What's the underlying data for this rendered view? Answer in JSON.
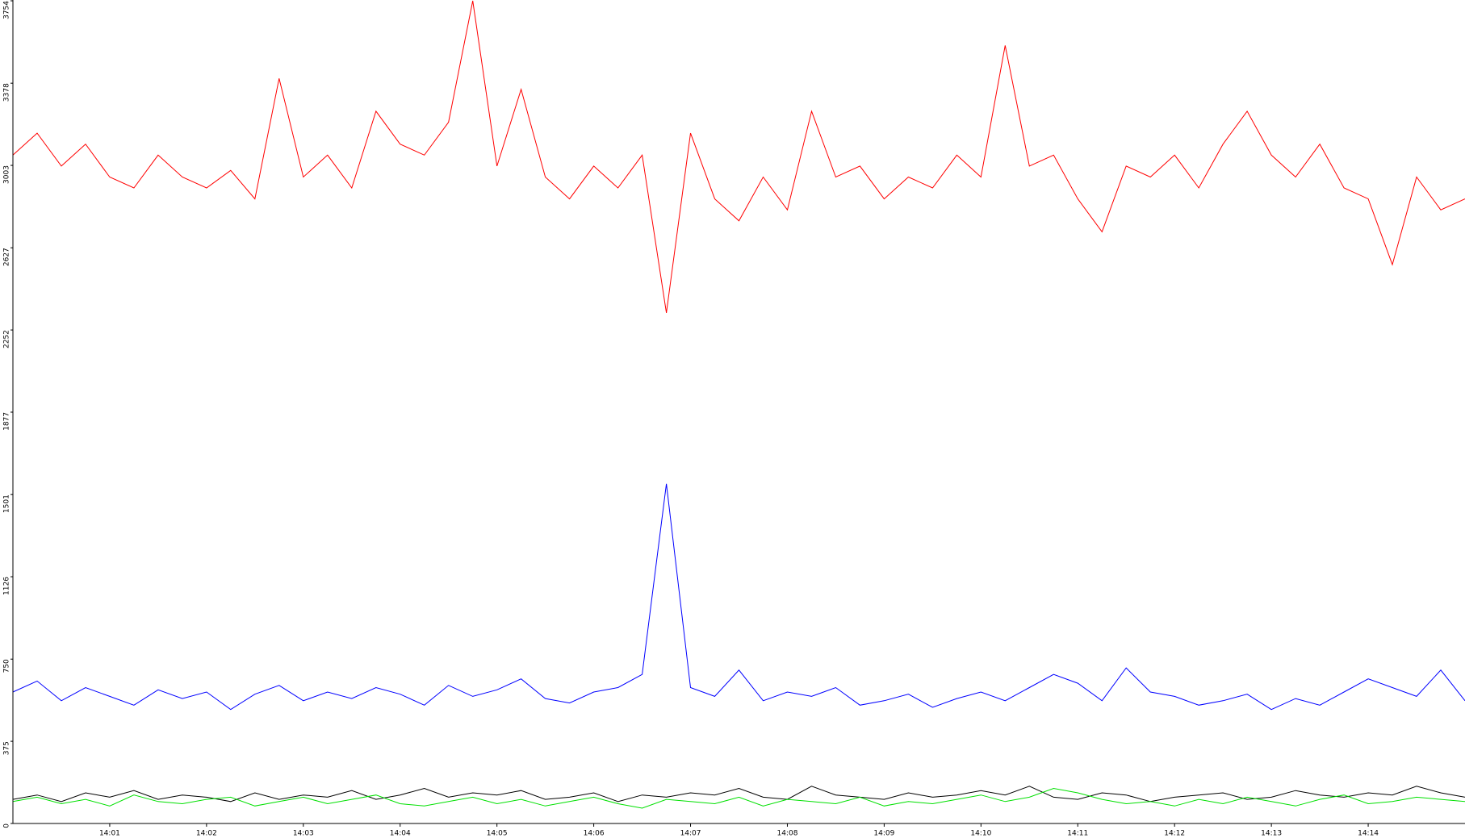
{
  "chart_data": {
    "type": "line",
    "x": [
      0,
      0.25,
      0.5,
      0.75,
      1,
      1.25,
      1.5,
      1.75,
      2,
      2.25,
      2.5,
      2.75,
      3,
      3.25,
      3.5,
      3.75,
      4,
      4.25,
      4.5,
      4.75,
      5,
      5.25,
      5.5,
      5.75,
      6,
      6.25,
      6.5,
      6.75,
      7,
      7.25,
      7.5,
      7.75,
      8,
      8.25,
      8.5,
      8.75,
      9,
      9.25,
      9.5,
      9.75,
      10,
      10.25,
      10.5,
      10.75,
      11,
      11.25,
      11.5,
      11.75,
      12,
      12.25,
      12.5,
      12.75,
      13,
      13.25,
      13.5,
      13.75,
      14,
      14.25,
      14.5,
      14.75,
      15
    ],
    "xlim": [
      0,
      15
    ],
    "xticks": [
      {
        "value": 1,
        "label": "14:01"
      },
      {
        "value": 2,
        "label": "14:02"
      },
      {
        "value": 3,
        "label": "14:03"
      },
      {
        "value": 4,
        "label": "14:04"
      },
      {
        "value": 5,
        "label": "14:05"
      },
      {
        "value": 6,
        "label": "14:06"
      },
      {
        "value": 7,
        "label": "14:07"
      },
      {
        "value": 8,
        "label": "14:08"
      },
      {
        "value": 9,
        "label": "14:09"
      },
      {
        "value": 10,
        "label": "14:10"
      },
      {
        "value": 11,
        "label": "14:11"
      },
      {
        "value": 12,
        "label": "14:12"
      },
      {
        "value": 13,
        "label": "14:13"
      },
      {
        "value": 14,
        "label": "14:14"
      }
    ],
    "ylim": [
      0,
      3754
    ],
    "yticks": [
      0,
      375,
      750,
      1126,
      1501,
      1877,
      2252,
      2627,
      3003,
      3378,
      3754
    ],
    "series": [
      {
        "color": "#ff0000",
        "values": [
          3050,
          3150,
          3000,
          3100,
          2950,
          2900,
          3050,
          2950,
          2900,
          2980,
          2850,
          3400,
          2950,
          3050,
          2900,
          3250,
          3100,
          3050,
          3200,
          3754,
          3000,
          3350,
          2950,
          2850,
          3000,
          2900,
          3050,
          2330,
          3150,
          2850,
          2750,
          2950,
          2800,
          3250,
          2950,
          3000,
          2850,
          2950,
          2900,
          3050,
          2950,
          3550,
          3000,
          3050,
          2850,
          2700,
          3000,
          2950,
          3050,
          2900,
          3100,
          3250,
          3050,
          2950,
          3100,
          2900,
          2850,
          2550,
          2950,
          2800,
          2850
        ]
      },
      {
        "color": "#0000ff",
        "values": [
          600,
          650,
          560,
          620,
          580,
          540,
          610,
          570,
          600,
          520,
          590,
          630,
          560,
          600,
          570,
          620,
          590,
          540,
          630,
          580,
          610,
          660,
          570,
          550,
          600,
          620,
          680,
          1550,
          620,
          580,
          700,
          560,
          600,
          580,
          620,
          540,
          560,
          590,
          530,
          570,
          600,
          560,
          620,
          680,
          640,
          560,
          710,
          600,
          580,
          540,
          560,
          590,
          520,
          570,
          540,
          600,
          660,
          620,
          580,
          700,
          560
        ]
      },
      {
        "color": "#000000",
        "values": [
          110,
          130,
          100,
          140,
          120,
          150,
          110,
          130,
          120,
          100,
          140,
          110,
          130,
          120,
          150,
          110,
          130,
          160,
          120,
          140,
          130,
          150,
          110,
          120,
          140,
          100,
          130,
          120,
          140,
          130,
          160,
          120,
          110,
          170,
          130,
          120,
          110,
          140,
          120,
          130,
          150,
          130,
          170,
          120,
          110,
          140,
          130,
          100,
          120,
          130,
          140,
          110,
          120,
          150,
          130,
          120,
          140,
          130,
          170,
          140,
          120
        ]
      },
      {
        "color": "#00e000",
        "values": [
          100,
          120,
          90,
          110,
          80,
          130,
          100,
          90,
          110,
          120,
          80,
          100,
          120,
          90,
          110,
          130,
          90,
          80,
          100,
          120,
          90,
          110,
          80,
          100,
          120,
          90,
          70,
          110,
          100,
          90,
          120,
          80,
          110,
          100,
          90,
          120,
          80,
          100,
          90,
          110,
          130,
          100,
          120,
          160,
          140,
          110,
          90,
          100,
          80,
          110,
          90,
          120,
          100,
          80,
          110,
          130,
          90,
          100,
          120,
          110,
          100
        ]
      }
    ]
  }
}
